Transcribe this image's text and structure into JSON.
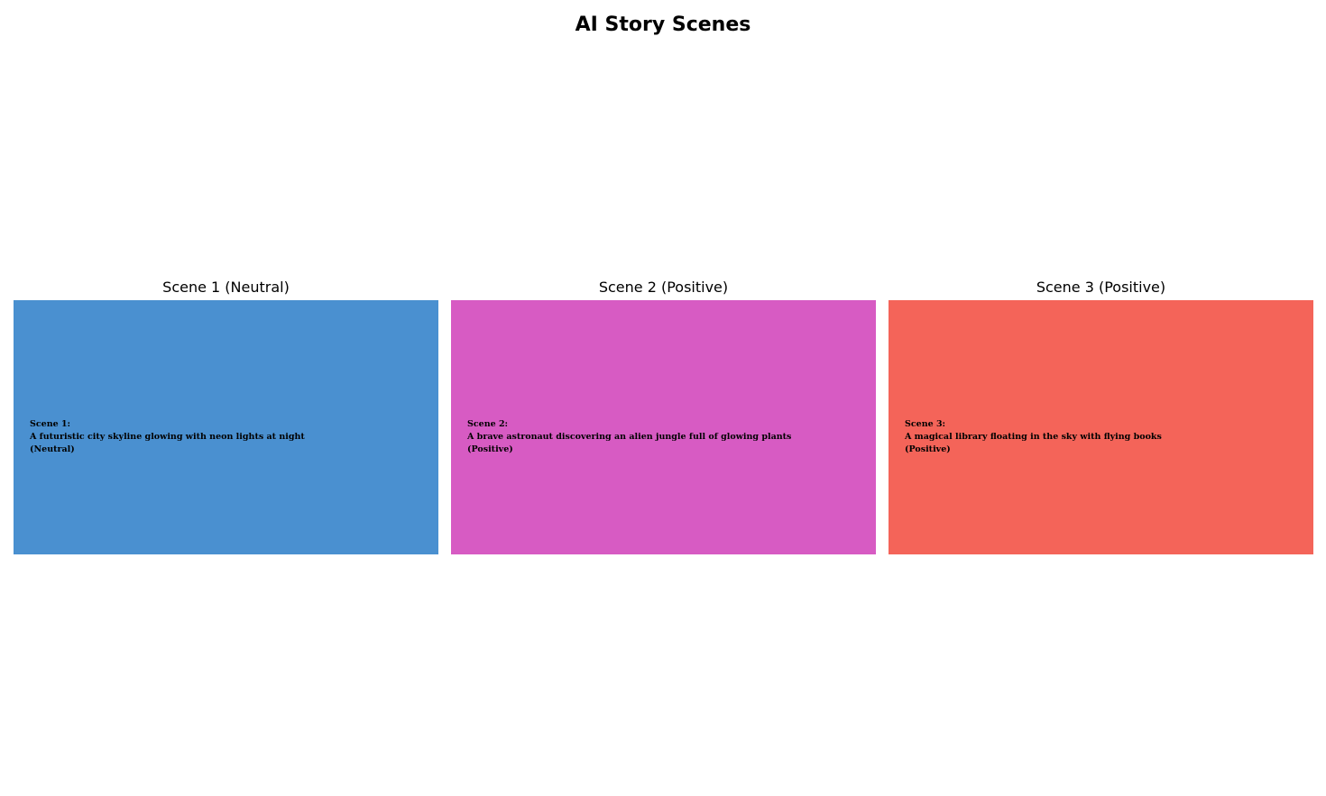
{
  "title": "AI Story Scenes",
  "scenes": [
    {
      "heading": "Scene 1 (Neutral)",
      "label": "Scene 1:",
      "description": "A futuristic city skyline glowing with neon lights at night",
      "mood": "(Neutral)",
      "color": "#4a90d0"
    },
    {
      "heading": "Scene 2 (Positive)",
      "label": "Scene 2:",
      "description": "A brave astronaut discovering an alien jungle full of glowing plants",
      "mood": "(Positive)",
      "color": "#d75bc3"
    },
    {
      "heading": "Scene 3 (Positive)",
      "label": "Scene 3:",
      "description": "A magical library floating in the sky with flying books",
      "mood": "(Positive)",
      "color": "#f46459"
    }
  ]
}
